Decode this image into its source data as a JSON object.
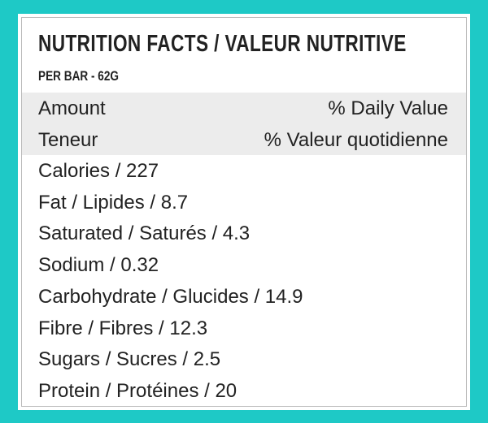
{
  "header": {
    "title": "NUTRITION FACTS / VALEUR NUTRITIVE",
    "subtitle": "PER BAR - 62G"
  },
  "table": {
    "header": [
      [
        "Amount",
        "% Daily Value"
      ],
      [
        "Teneur",
        "% Valeur quotidienne"
      ]
    ],
    "rows": [
      "Calories / 227",
      "Fat / Lipides / 8.7",
      "Saturated / Saturés / 4.3",
      "Sodium / 0.32",
      "Carbohydrate / Glucides / 14.9",
      "Fibre / Fibres / 12.3",
      "Sugars / Sucres / 2.5",
      "Protein / Protéines / 20"
    ]
  }
}
